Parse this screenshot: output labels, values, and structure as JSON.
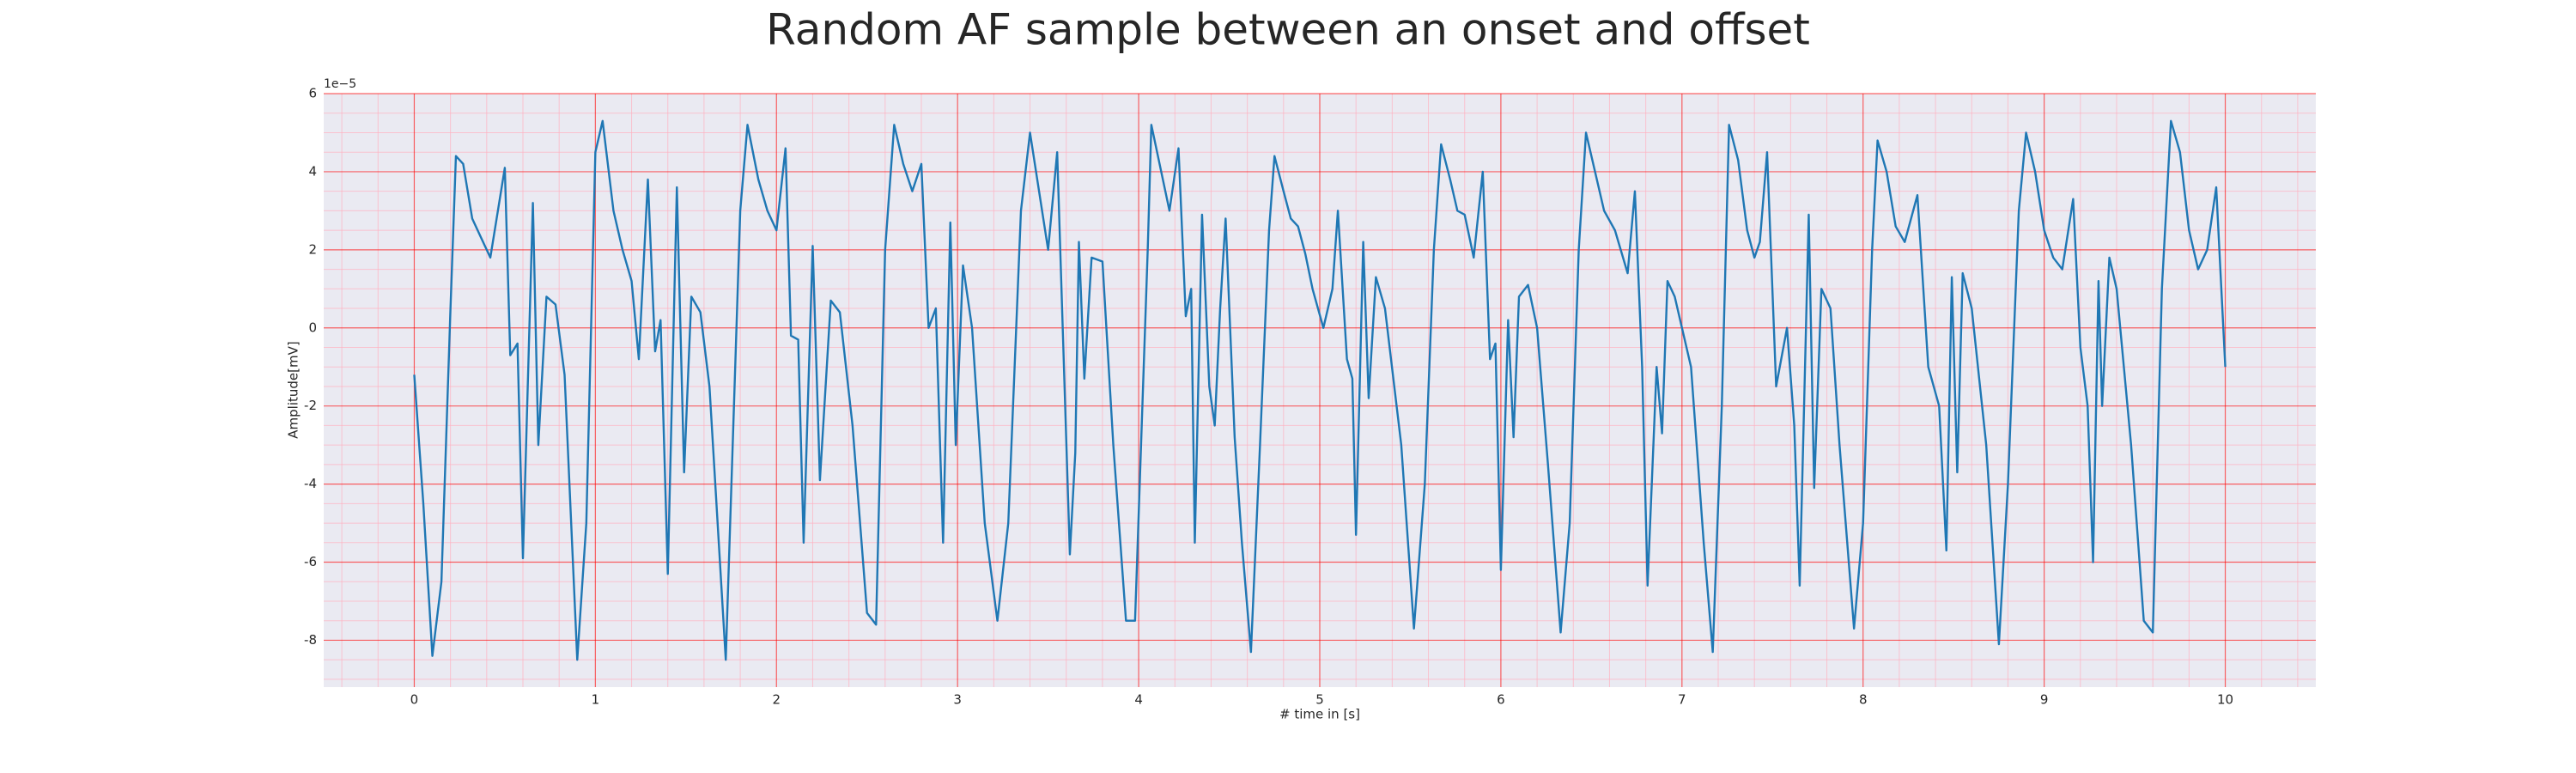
{
  "chart_data": {
    "type": "line",
    "title": "Random AF sample between an onset and offset",
    "x_label": "# time in [s]",
    "y_label": "Amplitude[mV]",
    "y_offset_label": "1e−5",
    "color": "#1f77b4",
    "grid": true,
    "grid_color": "#ff0000",
    "minor_grid_color": "#ffb0c0",
    "background": "#eaeaf2",
    "xlim": [
      -0.5,
      10.5
    ],
    "ylim": [
      -9.2,
      6
    ],
    "xticks": [
      0,
      1,
      2,
      3,
      4,
      5,
      6,
      7,
      8,
      9,
      10
    ],
    "yticks": [
      -8,
      -6,
      -4,
      -2,
      0,
      2,
      4,
      6
    ],
    "xminorticks": [
      -0.4,
      -0.2,
      0.2,
      0.4,
      0.6,
      0.8,
      1.2,
      1.4,
      1.6,
      1.8,
      2.2,
      2.4,
      2.6,
      2.8,
      3.2,
      3.4,
      3.6,
      3.8,
      4.2,
      4.4,
      4.6,
      4.8,
      5.2,
      5.4,
      5.6,
      5.8,
      6.2,
      6.4,
      6.6,
      6.8,
      7.2,
      7.4,
      7.6,
      7.8,
      8.2,
      8.4,
      8.6,
      8.8,
      9.2,
      9.4,
      9.6,
      9.8,
      10.2,
      10.4
    ],
    "yminorticks": [
      -9,
      -8.5,
      -7.5,
      -7,
      -6.5,
      -5.5,
      -5,
      -4.5,
      -3.5,
      -3,
      -2.5,
      -1.5,
      -1,
      -0.5,
      0.5,
      1,
      1.5,
      2.5,
      3,
      3.5,
      4.5,
      5,
      5.5
    ],
    "x": [
      0,
      0.05,
      0.1,
      0.15,
      0.2,
      0.23,
      0.27,
      0.32,
      0.37,
      0.42,
      0.5,
      0.53,
      0.57,
      0.6,
      0.655,
      0.685,
      0.73,
      0.78,
      0.83,
      0.9,
      0.95,
      1.0,
      1.04,
      1.1,
      1.15,
      1.2,
      1.24,
      1.29,
      1.33,
      1.36,
      1.4,
      1.45,
      1.49,
      1.53,
      1.58,
      1.63,
      1.72,
      1.8,
      1.84,
      1.9,
      1.95,
      2.0,
      2.05,
      2.08,
      2.12,
      2.15,
      2.2,
      2.24,
      2.3,
      2.35,
      2.42,
      2.5,
      2.55,
      2.6,
      2.65,
      2.7,
      2.75,
      2.8,
      2.84,
      2.88,
      2.92,
      2.96,
      2.99,
      3.03,
      3.08,
      3.15,
      3.22,
      3.28,
      3.35,
      3.4,
      3.45,
      3.5,
      3.55,
      3.62,
      3.65,
      3.67,
      3.7,
      3.74,
      3.8,
      3.86,
      3.93,
      3.98,
      4.05,
      4.07,
      4.12,
      4.17,
      4.22,
      4.26,
      4.29,
      4.31,
      4.35,
      4.39,
      4.42,
      4.45,
      4.48,
      4.53,
      4.57,
      4.62,
      4.67,
      4.72,
      4.75,
      4.8,
      4.84,
      4.88,
      4.92,
      4.96,
      4.99,
      5.02,
      5.07,
      5.1,
      5.15,
      5.18,
      5.2,
      5.24,
      5.27,
      5.31,
      5.36,
      5.45,
      5.52,
      5.58,
      5.63,
      5.67,
      5.72,
      5.76,
      5.8,
      5.85,
      5.9,
      5.94,
      5.97,
      6.0,
      6.04,
      6.07,
      6.1,
      6.15,
      6.2,
      6.26,
      6.33,
      6.38,
      6.43,
      6.47,
      6.52,
      6.57,
      6.63,
      6.7,
      6.74,
      6.78,
      6.81,
      6.86,
      6.89,
      6.92,
      6.96,
      7.05,
      7.12,
      7.17,
      7.22,
      7.26,
      7.31,
      7.36,
      7.4,
      7.43,
      7.47,
      7.52,
      7.58,
      7.62,
      7.65,
      7.7,
      7.73,
      7.77,
      7.82,
      7.87,
      7.95,
      8.0,
      8.05,
      8.08,
      8.13,
      8.18,
      8.23,
      8.3,
      8.36,
      8.42,
      8.46,
      8.49,
      8.52,
      8.55,
      8.6,
      8.68,
      8.75,
      8.8,
      8.86,
      8.9,
      8.95,
      9.0,
      9.05,
      9.1,
      9.16,
      9.2,
      9.24,
      9.27,
      9.3,
      9.32,
      9.36,
      9.4,
      9.48,
      9.55,
      9.6,
      9.65,
      9.7,
      9.75,
      9.8,
      9.85,
      9.9,
      9.95,
      10.0
    ],
    "values": [
      -1.2,
      -4.5,
      -8.4,
      -6.5,
      0.5,
      4.4,
      4.2,
      2.8,
      2.3,
      1.8,
      4.1,
      -0.7,
      -0.4,
      -5.9,
      3.2,
      -3.0,
      0.8,
      0.6,
      -1.2,
      -8.5,
      -5,
      4.5,
      5.3,
      3.0,
      2.0,
      1.2,
      -0.8,
      3.8,
      -0.6,
      0.2,
      -6.3,
      3.6,
      -3.7,
      0.8,
      0.4,
      -1.5,
      -8.5,
      3,
      5.2,
      3.8,
      3.0,
      2.5,
      4.6,
      -0.2,
      -0.3,
      -5.5,
      2.1,
      -3.9,
      0.7,
      0.4,
      -2.5,
      -7.3,
      -7.6,
      2,
      5.2,
      4.2,
      3.5,
      4.2,
      0,
      0.5,
      -5.5,
      2.7,
      -3,
      1.6,
      0,
      -5,
      -7.5,
      -5,
      3,
      5,
      3.5,
      2.0,
      4.5,
      -5.8,
      -3.2,
      2.2,
      -1.3,
      1.8,
      1.7,
      -3,
      -7.5,
      -7.5,
      2,
      5.2,
      4.1,
      3,
      4.6,
      0.3,
      1.0,
      -5.5,
      2.9,
      -1.5,
      -2.5,
      0.5,
      2.8,
      -2.8,
      -5.5,
      -8.3,
      -3,
      2.5,
      4.4,
      3.5,
      2.8,
      2.6,
      1.9,
      1.0,
      0.5,
      0,
      1.0,
      3,
      -0.8,
      -1.3,
      -5.3,
      2.2,
      -1.8,
      1.3,
      0.5,
      -3,
      -7.7,
      -4,
      2,
      4.7,
      3.8,
      3,
      2.9,
      1.8,
      4,
      -0.8,
      -0.4,
      -6.2,
      0.2,
      -2.8,
      0.8,
      1.1,
      0,
      -3.5,
      -7.8,
      -5,
      2,
      5,
      4,
      3,
      2.5,
      1.4,
      3.5,
      -1,
      -6.6,
      -1,
      -2.7,
      1.2,
      0.8,
      -1,
      -5.5,
      -8.3,
      -2,
      5.2,
      4.3,
      2.5,
      1.8,
      2.2,
      4.5,
      -1.5,
      0,
      -2.5,
      -6.6,
      2.9,
      -4.1,
      1.0,
      0.5,
      -3,
      -7.7,
      -5,
      2,
      4.8,
      4,
      2.6,
      2.2,
      3.4,
      -1,
      -2,
      -5.7,
      1.3,
      -3.7,
      1.4,
      0.5,
      -3,
      -8.1,
      -4,
      3,
      5,
      4,
      2.5,
      1.8,
      1.5,
      3.3,
      -0.5,
      -2,
      -6,
      1.2,
      -2,
      1.8,
      1,
      -3,
      -7.5,
      -7.8,
      1,
      5.3,
      4.5,
      2.5,
      1.5,
      2.0,
      3.6,
      -1
    ]
  }
}
